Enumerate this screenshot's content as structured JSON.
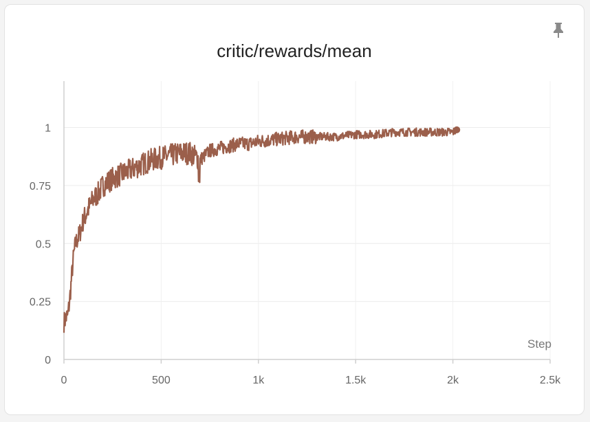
{
  "panel": {
    "title": "critic/rewards/mean",
    "pin_icon": "pin-icon"
  },
  "chart_data": {
    "type": "line",
    "title": "critic/rewards/mean",
    "xlabel": "Step",
    "ylabel": "",
    "xlim": [
      0,
      2500
    ],
    "ylim": [
      0,
      1.2
    ],
    "x_ticks": [
      0,
      500,
      1000,
      1500,
      2000,
      2500
    ],
    "x_tick_labels": [
      "0",
      "500",
      "1k",
      "1.5k",
      "2k",
      "2.5k"
    ],
    "y_ticks": [
      0,
      0.25,
      0.5,
      0.75,
      1
    ],
    "y_tick_labels": [
      "0",
      "0.25",
      "0.5",
      "0.75",
      "1"
    ],
    "grid": true,
    "series": [
      {
        "color": "#9b5f4b",
        "x": [
          0,
          10,
          20,
          30,
          40,
          50,
          60,
          80,
          100,
          120,
          150,
          180,
          200,
          250,
          300,
          350,
          400,
          450,
          500,
          550,
          600,
          650,
          700,
          750,
          800,
          850,
          900,
          950,
          1000,
          1100,
          1200,
          1300,
          1400,
          1500,
          1600,
          1700,
          1800,
          1900,
          2000,
          2020
        ],
        "values": [
          0.16,
          0.18,
          0.19,
          0.26,
          0.36,
          0.45,
          0.5,
          0.54,
          0.6,
          0.64,
          0.69,
          0.72,
          0.75,
          0.78,
          0.8,
          0.82,
          0.84,
          0.86,
          0.87,
          0.88,
          0.89,
          0.89,
          0.86,
          0.9,
          0.91,
          0.92,
          0.93,
          0.93,
          0.94,
          0.95,
          0.96,
          0.96,
          0.96,
          0.97,
          0.97,
          0.98,
          0.98,
          0.98,
          0.98,
          0.99
        ]
      }
    ]
  }
}
